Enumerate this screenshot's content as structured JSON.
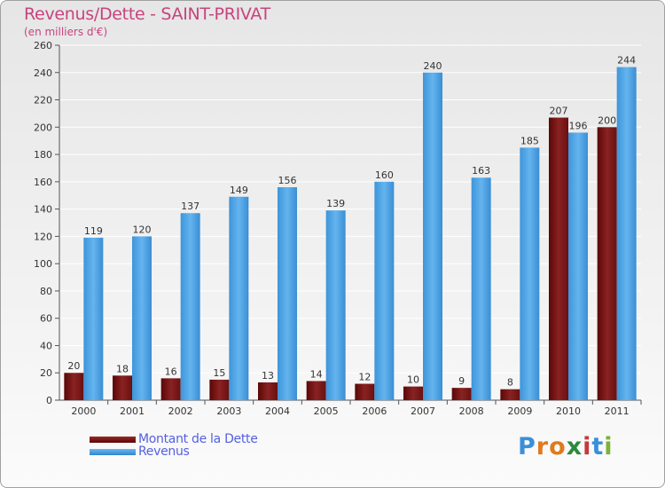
{
  "header": {
    "title": "Revenus/Dette - SAINT-PRIVAT",
    "subtitle": "(en milliers d'€)"
  },
  "legend": {
    "items": [
      {
        "label": "Montant de la Dette",
        "color": "#6e0f0f"
      },
      {
        "label": "Revenus",
        "color": "#4a9ee0"
      }
    ]
  },
  "logo": {
    "text": "Proxiti"
  },
  "chart_data": {
    "type": "bar",
    "title": "Revenus/Dette - SAINT-PRIVAT",
    "subtitle": "(en milliers d'€)",
    "categories": [
      "2000",
      "2001",
      "2002",
      "2003",
      "2004",
      "2005",
      "2006",
      "2007",
      "2008",
      "2009",
      "2010",
      "2011"
    ],
    "series": [
      {
        "name": "Montant de la Dette",
        "color": "#6e0f0f",
        "values": [
          20,
          18,
          16,
          15,
          13,
          14,
          12,
          10,
          9,
          8,
          207,
          200
        ]
      },
      {
        "name": "Revenus",
        "color": "#4a9ee0",
        "values": [
          119,
          120,
          137,
          149,
          156,
          139,
          160,
          240,
          163,
          185,
          196,
          244
        ]
      }
    ],
    "ylim": [
      0,
      260
    ],
    "yticks": [
      0,
      20,
      40,
      60,
      80,
      100,
      120,
      140,
      160,
      180,
      200,
      220,
      240,
      260
    ],
    "grid": true,
    "legend_position": "bottom-left",
    "data_labels": true
  }
}
